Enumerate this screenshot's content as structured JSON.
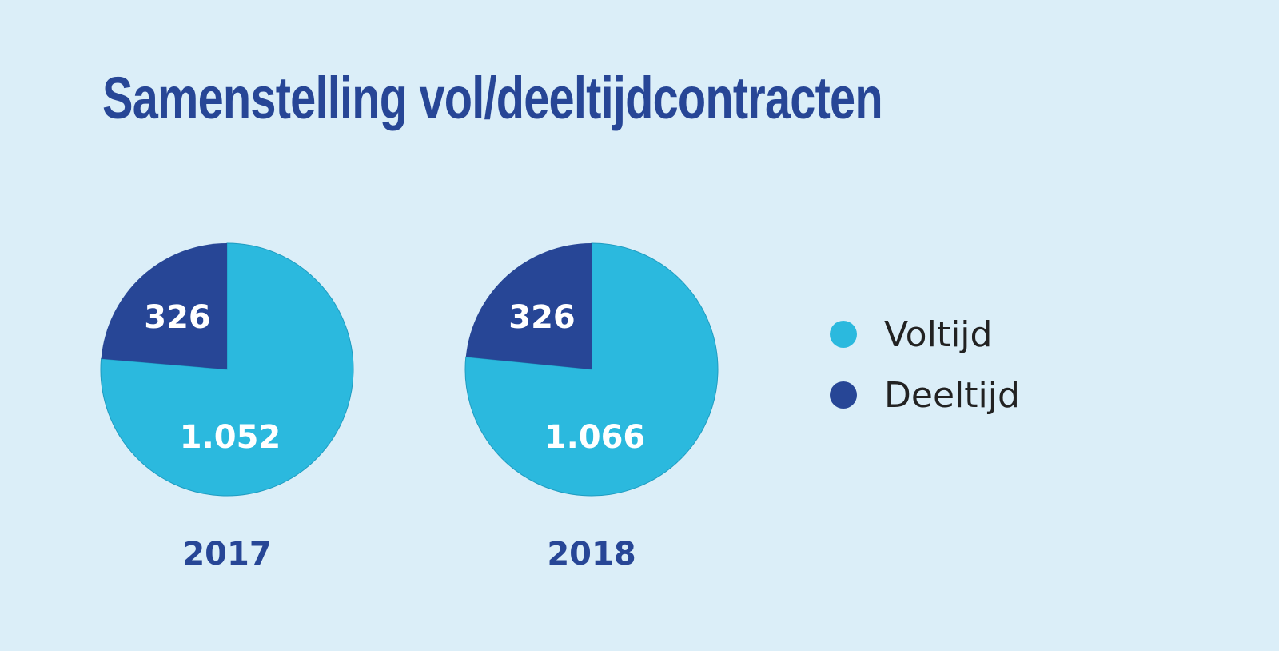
{
  "title": "Samenstelling vol/deeltijdcontracten",
  "colors": {
    "background": "#dbeef8",
    "title": "#274696",
    "voltijd": "#2bb9de",
    "deeltijd": "#274696",
    "year_label": "#274696",
    "slice_label": "#ffffff"
  },
  "legend": [
    {
      "label": "Voltijd",
      "color": "#2bb9de"
    },
    {
      "label": "Deeltijd",
      "color": "#274696"
    }
  ],
  "chart_data": [
    {
      "type": "pie",
      "title": "2017",
      "slices": [
        {
          "label": "Voltijd",
          "value": 1052,
          "display": "1.052",
          "color": "#2bb9de"
        },
        {
          "label": "Deeltijd",
          "value": 326,
          "display": "326",
          "color": "#274696"
        }
      ]
    },
    {
      "type": "pie",
      "title": "2018",
      "slices": [
        {
          "label": "Voltijd",
          "value": 1066,
          "display": "1.066",
          "color": "#2bb9de"
        },
        {
          "label": "Deeltijd",
          "value": 326,
          "display": "326",
          "color": "#274696"
        }
      ]
    }
  ]
}
